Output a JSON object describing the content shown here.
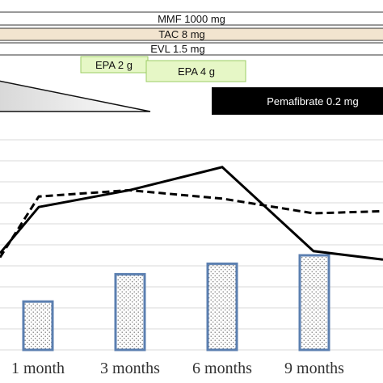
{
  "chart_data": {
    "type": "bar",
    "categories": [
      "1 month",
      "3 months",
      "6 months",
      "9 months"
    ],
    "series": [
      {
        "kind": "bar",
        "values": [
          43,
          56,
          61,
          65
        ]
      },
      {
        "kind": "line-dashed",
        "x": [
          0,
          1,
          2,
          3,
          4
        ],
        "values": [
          64,
          93,
          96,
          92,
          85
        ]
      },
      {
        "kind": "line-solid",
        "x": [
          0,
          1,
          2,
          3,
          4
        ],
        "values": [
          66,
          88,
          96,
          107,
          67
        ]
      }
    ],
    "line_tail": {
      "dashed_end": 86,
      "solid_end": 63
    },
    "ylim": [
      20,
      120
    ],
    "grid": true,
    "colors": {
      "bar_edge": "#5b7fb0",
      "grid": "#d9d9d9",
      "tac_band": "#f2e4cf",
      "epa_band": "#e6f7c6",
      "pema_band": "#000000"
    },
    "regimen": {
      "mmf": "MMF 1000 mg",
      "tac": "TAC 8 mg",
      "evl": "EVL 1.5 mg",
      "epa2": "EPA 2 g",
      "epa4": "EPA 4 g",
      "pema": "Pemafibrate 0.2 mg"
    }
  }
}
